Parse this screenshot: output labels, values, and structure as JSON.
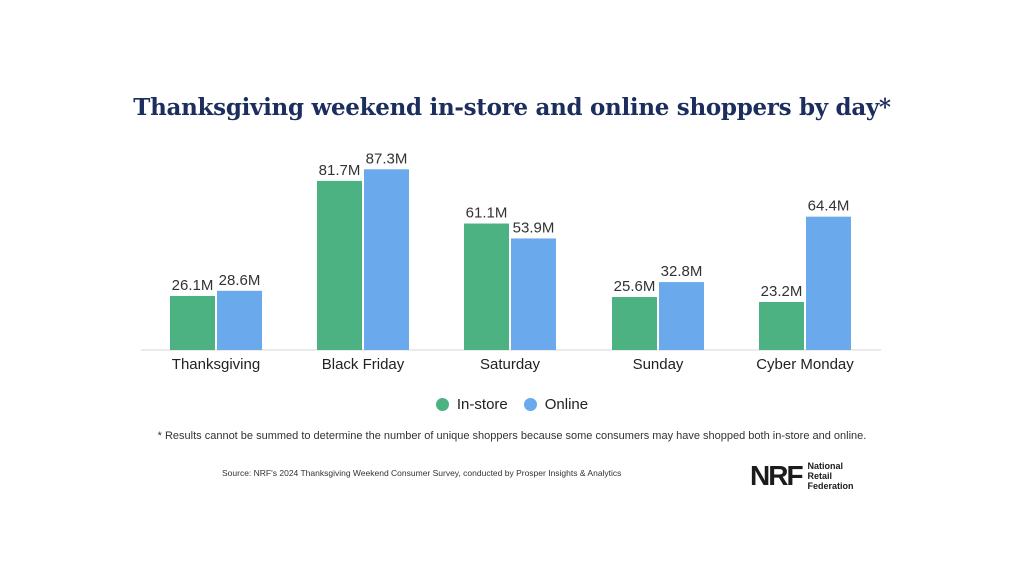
{
  "chart_data": {
    "type": "bar",
    "title": "Thanksgiving weekend in-store and online shoppers by day*",
    "categories": [
      "Thanksgiving",
      "Black Friday",
      "Saturday",
      "Sunday",
      "Cyber Monday"
    ],
    "series": [
      {
        "name": "In-store",
        "color": "#4db282",
        "values": [
          26.1,
          81.7,
          61.1,
          25.6,
          23.2
        ],
        "labels": [
          "26.1M",
          "81.7M",
          "61.1M",
          "25.6M",
          "23.2M"
        ]
      },
      {
        "name": "Online",
        "color": "#6aaaec",
        "values": [
          28.6,
          87.3,
          53.9,
          32.8,
          64.4
        ],
        "labels": [
          "28.6M",
          "87.3M",
          "53.9M",
          "32.8M",
          "64.4M"
        ]
      }
    ],
    "ylim": [
      0,
      100
    ],
    "xlabel": "",
    "ylabel": "",
    "legend": "bottom-center",
    "grid": false
  },
  "footnote": "* Results cannot be summed to determine the number of unique shoppers because some consumers may have shopped both in-store and online.",
  "source": "Source: NRF's 2024 Thanksgiving Weekend Consumer Survey, conducted by Prosper Insights & Analytics",
  "logo": {
    "mark": "NRF",
    "lines": [
      "National",
      "Retail",
      "Federation"
    ]
  }
}
